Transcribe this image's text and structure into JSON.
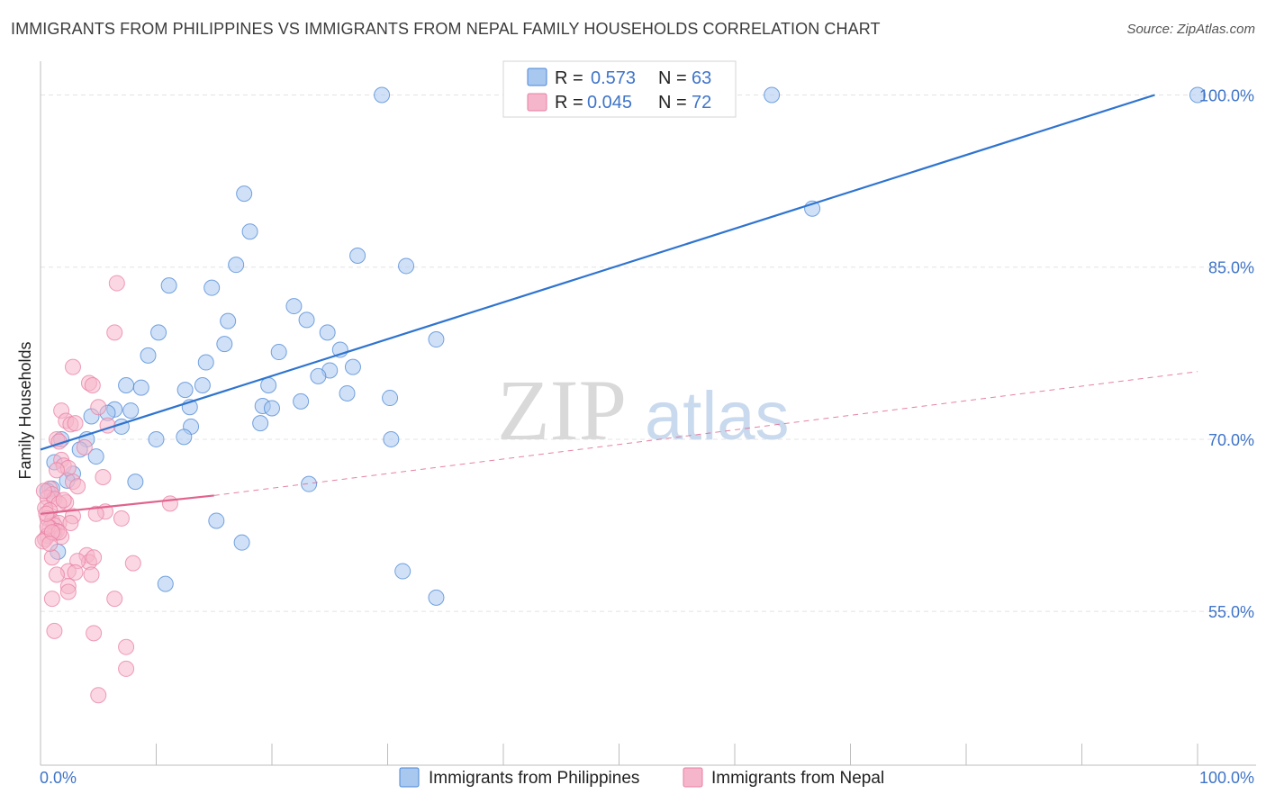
{
  "title": "IMMIGRANTS FROM PHILIPPINES VS IMMIGRANTS FROM NEPAL FAMILY HOUSEHOLDS CORRELATION CHART",
  "source": "Source: ZipAtlas.com",
  "watermark": {
    "zip": "ZIP",
    "atlas": "atlas"
  },
  "colors": {
    "philippines_fill": "#a9c8f0",
    "philippines_stroke": "#4a86d4",
    "philippines_line": "#2f74cf",
    "nepal_fill": "#f5b6cb",
    "nepal_stroke": "#e87fa3",
    "nepal_line": "#e0638e",
    "grid": "#e3e3e3",
    "tick_text": "#3f74c8"
  },
  "legend": {
    "rows": [
      {
        "r_label": "R = ",
        "r_value": "0.573",
        "n_label": "N = ",
        "n_value": "63"
      },
      {
        "r_label": "R = ",
        "r_value": "0.045",
        "n_label": "N = ",
        "n_value": "72"
      }
    ]
  },
  "chart_data": {
    "type": "scatter",
    "title": "IMMIGRANTS FROM PHILIPPINES VS IMMIGRANTS FROM NEPAL FAMILY HOUSEHOLDS CORRELATION CHART",
    "xlabel": "",
    "ylabel": "Family Households",
    "xlim": [
      0,
      100
    ],
    "ylim": [
      41.6,
      102.0
    ],
    "x_tick_labels": [
      "0.0%",
      "100.0%"
    ],
    "y_ticks": [
      55,
      70,
      85,
      100
    ],
    "y_tick_labels": [
      "55.0%",
      "70.0%",
      "85.0%",
      "100.0%"
    ],
    "grid": true,
    "legend_position": "top-center",
    "series": [
      {
        "name": "Immigrants from Philippines",
        "r": 0.573,
        "n": 63,
        "trend": {
          "x0": 0,
          "y0": 69.1,
          "x1": 96.3,
          "y1": 100.0,
          "style": "solid"
        },
        "points": [
          [
            29.5,
            100.0
          ],
          [
            63.2,
            100.0
          ],
          [
            100.0,
            100.0
          ],
          [
            17.6,
            91.4
          ],
          [
            18.1,
            88.1
          ],
          [
            66.7,
            90.1
          ],
          [
            16.9,
            85.2
          ],
          [
            27.4,
            86.0
          ],
          [
            31.6,
            85.1
          ],
          [
            11.1,
            83.4
          ],
          [
            14.8,
            83.2
          ],
          [
            21.9,
            81.6
          ],
          [
            16.2,
            80.3
          ],
          [
            23.0,
            80.4
          ],
          [
            24.8,
            79.3
          ],
          [
            10.2,
            79.3
          ],
          [
            34.2,
            78.7
          ],
          [
            15.9,
            78.3
          ],
          [
            20.6,
            77.6
          ],
          [
            25.9,
            77.8
          ],
          [
            9.3,
            77.3
          ],
          [
            14.3,
            76.7
          ],
          [
            25.0,
            76.0
          ],
          [
            27.0,
            76.3
          ],
          [
            24.0,
            75.5
          ],
          [
            7.4,
            74.7
          ],
          [
            8.7,
            74.5
          ],
          [
            12.5,
            74.3
          ],
          [
            14.0,
            74.7
          ],
          [
            19.7,
            74.7
          ],
          [
            26.5,
            74.0
          ],
          [
            30.2,
            73.6
          ],
          [
            22.5,
            73.3
          ],
          [
            12.9,
            72.8
          ],
          [
            19.2,
            72.9
          ],
          [
            20.0,
            72.7
          ],
          [
            6.4,
            72.6
          ],
          [
            7.8,
            72.5
          ],
          [
            5.8,
            72.3
          ],
          [
            4.4,
            72.0
          ],
          [
            19.0,
            71.4
          ],
          [
            13.0,
            71.1
          ],
          [
            7.0,
            71.1
          ],
          [
            10.0,
            70.0
          ],
          [
            12.4,
            70.2
          ],
          [
            30.3,
            70.0
          ],
          [
            1.8,
            70.0
          ],
          [
            4.0,
            70.0
          ],
          [
            3.4,
            69.1
          ],
          [
            4.8,
            68.5
          ],
          [
            1.2,
            68.0
          ],
          [
            2.8,
            67.0
          ],
          [
            2.3,
            66.4
          ],
          [
            8.2,
            66.3
          ],
          [
            23.2,
            66.1
          ],
          [
            1.0,
            65.7
          ],
          [
            0.6,
            65.5
          ],
          [
            15.2,
            62.9
          ],
          [
            17.4,
            61.0
          ],
          [
            31.3,
            58.5
          ],
          [
            10.8,
            57.4
          ],
          [
            34.2,
            56.2
          ],
          [
            1.5,
            60.2
          ]
        ]
      },
      {
        "name": "Immigrants from Nepal",
        "r": 0.045,
        "n": 72,
        "trend": {
          "x0": 0,
          "y0": 63.5,
          "x1": 15,
          "y1": 65.1,
          "style": "solid"
        },
        "trend_extension": {
          "x0": 15,
          "y0": 65.1,
          "x1": 100,
          "y1": 75.9,
          "style": "dashed"
        },
        "points": [
          [
            6.6,
            83.6
          ],
          [
            6.4,
            79.3
          ],
          [
            2.8,
            76.3
          ],
          [
            4.2,
            74.9
          ],
          [
            4.5,
            74.7
          ],
          [
            1.8,
            72.5
          ],
          [
            5.0,
            72.8
          ],
          [
            2.2,
            71.6
          ],
          [
            2.6,
            71.3
          ],
          [
            3.0,
            71.4
          ],
          [
            5.8,
            71.2
          ],
          [
            1.4,
            70.0
          ],
          [
            1.6,
            69.8
          ],
          [
            3.8,
            69.3
          ],
          [
            1.8,
            68.2
          ],
          [
            2.0,
            67.7
          ],
          [
            2.4,
            67.5
          ],
          [
            1.4,
            67.3
          ],
          [
            5.4,
            66.7
          ],
          [
            2.8,
            66.3
          ],
          [
            3.2,
            65.9
          ],
          [
            0.8,
            65.7
          ],
          [
            1.0,
            65.2
          ],
          [
            0.6,
            64.9
          ],
          [
            1.2,
            64.8
          ],
          [
            2.2,
            64.5
          ],
          [
            1.6,
            64.4
          ],
          [
            11.2,
            64.4
          ],
          [
            0.4,
            64.0
          ],
          [
            0.8,
            63.8
          ],
          [
            5.6,
            63.7
          ],
          [
            4.8,
            63.5
          ],
          [
            2.8,
            63.3
          ],
          [
            7.0,
            63.1
          ],
          [
            0.6,
            63.1
          ],
          [
            1.0,
            62.9
          ],
          [
            1.6,
            62.7
          ],
          [
            1.2,
            62.5
          ],
          [
            0.8,
            62.3
          ],
          [
            1.4,
            62.0
          ],
          [
            1.2,
            61.8
          ],
          [
            0.6,
            61.6
          ],
          [
            1.8,
            61.5
          ],
          [
            0.4,
            61.3
          ],
          [
            0.2,
            61.1
          ],
          [
            4.0,
            59.9
          ],
          [
            4.2,
            59.3
          ],
          [
            3.2,
            59.4
          ],
          [
            1.0,
            59.7
          ],
          [
            4.6,
            59.7
          ],
          [
            8.0,
            59.2
          ],
          [
            2.4,
            58.5
          ],
          [
            3.0,
            58.4
          ],
          [
            4.4,
            58.2
          ],
          [
            1.4,
            58.2
          ],
          [
            2.4,
            57.2
          ],
          [
            2.4,
            56.7
          ],
          [
            6.4,
            56.1
          ],
          [
            1.0,
            56.1
          ],
          [
            1.2,
            53.3
          ],
          [
            4.6,
            53.1
          ],
          [
            7.4,
            51.9
          ],
          [
            7.4,
            50.0
          ],
          [
            5.0,
            47.7
          ],
          [
            0.6,
            62.4
          ],
          [
            1.6,
            61.9
          ],
          [
            2.0,
            64.7
          ],
          [
            0.3,
            65.5
          ],
          [
            0.5,
            63.5
          ],
          [
            2.6,
            62.7
          ],
          [
            1.0,
            61.9
          ],
          [
            0.8,
            60.9
          ]
        ]
      }
    ]
  }
}
